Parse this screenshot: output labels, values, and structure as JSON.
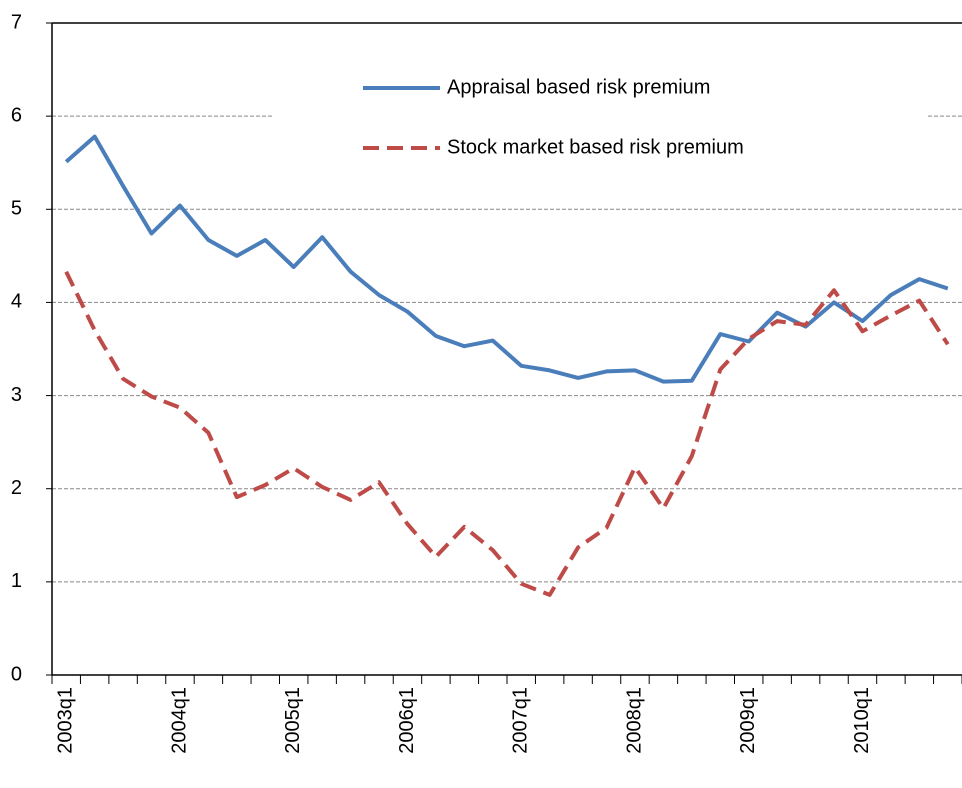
{
  "chart_data": {
    "type": "line",
    "categories": [
      "2003q1",
      null,
      null,
      null,
      "2004q1",
      null,
      null,
      null,
      "2005q1",
      null,
      null,
      null,
      "2006q1",
      null,
      null,
      null,
      "2007q1",
      null,
      null,
      null,
      "2008q1",
      null,
      null,
      null,
      "2009q1",
      null,
      null,
      null,
      "2010q1",
      null,
      null,
      null
    ],
    "series": [
      {
        "name": "Appraisal based risk premium",
        "color": "#4a7ebb",
        "dash": false,
        "values": [
          5.51,
          5.78,
          5.25,
          4.74,
          5.04,
          4.67,
          4.5,
          4.67,
          4.38,
          4.7,
          4.33,
          4.08,
          3.9,
          3.64,
          3.53,
          3.59,
          3.32,
          3.27,
          3.19,
          3.26,
          3.27,
          3.15,
          3.16,
          3.66,
          3.58,
          3.89,
          3.74,
          4.0,
          3.8,
          4.08,
          4.25,
          4.15
        ]
      },
      {
        "name": "Stock market based risk premium",
        "color": "#be4b48",
        "dash": true,
        "values": [
          4.33,
          3.7,
          3.18,
          2.99,
          2.87,
          2.6,
          1.91,
          2.04,
          2.22,
          2.02,
          1.88,
          2.07,
          1.62,
          1.27,
          1.59,
          1.34,
          0.98,
          0.86,
          1.37,
          1.58,
          2.23,
          1.79,
          2.35,
          3.28,
          3.61,
          3.8,
          3.76,
          4.13,
          3.69,
          3.86,
          4.02,
          3.55
        ]
      }
    ],
    "ylim": [
      0,
      7
    ],
    "yticks": [
      0,
      1,
      2,
      3,
      4,
      5,
      6,
      7
    ],
    "grid": true
  }
}
